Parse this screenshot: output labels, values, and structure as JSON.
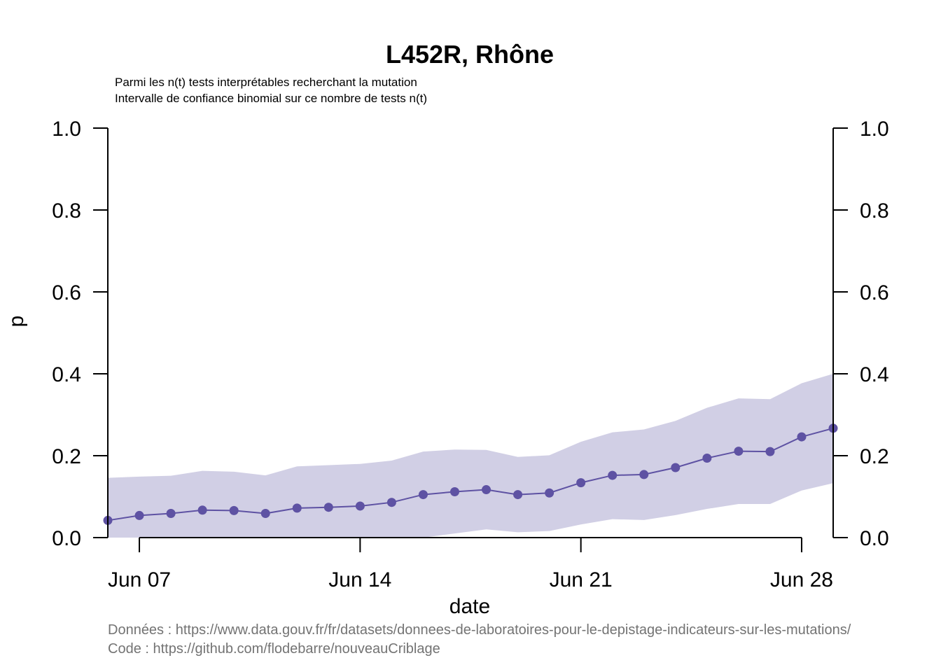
{
  "chart_data": {
    "type": "line",
    "title": "L452R, Rhône",
    "subtitle_lines": [
      "Parmi les n(t) tests interprétables recherchant la mutation",
      "Intervalle de confiance binomial sur ce nombre de tests n(t)"
    ],
    "xlabel": "date",
    "ylabel": "p",
    "ylim": [
      0,
      1
    ],
    "y_ticks": [
      "0.0",
      "0.2",
      "0.4",
      "0.6",
      "0.8",
      "1.0"
    ],
    "x_ticks": [
      {
        "date": "2021-06-07",
        "label": "Jun 07"
      },
      {
        "date": "2021-06-14",
        "label": "Jun 14"
      },
      {
        "date": "2021-06-21",
        "label": "Jun 21"
      },
      {
        "date": "2021-06-28",
        "label": "Jun 28"
      }
    ],
    "xlim": [
      "2021-06-06",
      "2021-06-29"
    ],
    "series": [
      {
        "color": "#5e52a3",
        "band_color": "#d1cfe5",
        "points": [
          {
            "x": "2021-06-06",
            "y": 0.042,
            "lo": 0.0,
            "hi": 0.146
          },
          {
            "x": "2021-06-07",
            "y": 0.054,
            "lo": 0.0,
            "hi": 0.149
          },
          {
            "x": "2021-06-08",
            "y": 0.059,
            "lo": 0.0,
            "hi": 0.151
          },
          {
            "x": "2021-06-09",
            "y": 0.067,
            "lo": 0.0,
            "hi": 0.163
          },
          {
            "x": "2021-06-10",
            "y": 0.066,
            "lo": 0.0,
            "hi": 0.161
          },
          {
            "x": "2021-06-11",
            "y": 0.059,
            "lo": 0.0,
            "hi": 0.152
          },
          {
            "x": "2021-06-12",
            "y": 0.072,
            "lo": 0.0,
            "hi": 0.174
          },
          {
            "x": "2021-06-13",
            "y": 0.074,
            "lo": 0.0,
            "hi": 0.177
          },
          {
            "x": "2021-06-14",
            "y": 0.077,
            "lo": 0.0,
            "hi": 0.18
          },
          {
            "x": "2021-06-15",
            "y": 0.086,
            "lo": 0.0,
            "hi": 0.188
          },
          {
            "x": "2021-06-16",
            "y": 0.105,
            "lo": 0.0,
            "hi": 0.21
          },
          {
            "x": "2021-06-17",
            "y": 0.112,
            "lo": 0.01,
            "hi": 0.215
          },
          {
            "x": "2021-06-18",
            "y": 0.117,
            "lo": 0.02,
            "hi": 0.214
          },
          {
            "x": "2021-06-19",
            "y": 0.105,
            "lo": 0.013,
            "hi": 0.197
          },
          {
            "x": "2021-06-20",
            "y": 0.109,
            "lo": 0.016,
            "hi": 0.201
          },
          {
            "x": "2021-06-21",
            "y": 0.134,
            "lo": 0.032,
            "hi": 0.234
          },
          {
            "x": "2021-06-22",
            "y": 0.152,
            "lo": 0.045,
            "hi": 0.257
          },
          {
            "x": "2021-06-23",
            "y": 0.154,
            "lo": 0.043,
            "hi": 0.264
          },
          {
            "x": "2021-06-24",
            "y": 0.171,
            "lo": 0.055,
            "hi": 0.285
          },
          {
            "x": "2021-06-25",
            "y": 0.194,
            "lo": 0.07,
            "hi": 0.317
          },
          {
            "x": "2021-06-26",
            "y": 0.211,
            "lo": 0.082,
            "hi": 0.34
          },
          {
            "x": "2021-06-27",
            "y": 0.21,
            "lo": 0.082,
            "hi": 0.338
          },
          {
            "x": "2021-06-28",
            "y": 0.246,
            "lo": 0.115,
            "hi": 0.377
          },
          {
            "x": "2021-06-29",
            "y": 0.267,
            "lo": 0.133,
            "hi": 0.4
          }
        ]
      }
    ],
    "grid": false,
    "legend": "none"
  },
  "footer": {
    "data_line": "Données : https://www.data.gouv.fr/fr/datasets/donnees-de-laboratoires-pour-le-depistage-indicateurs-sur-les-mutations/",
    "code_line": "Code : https://github.com/flodebarre/nouveauCriblage"
  }
}
